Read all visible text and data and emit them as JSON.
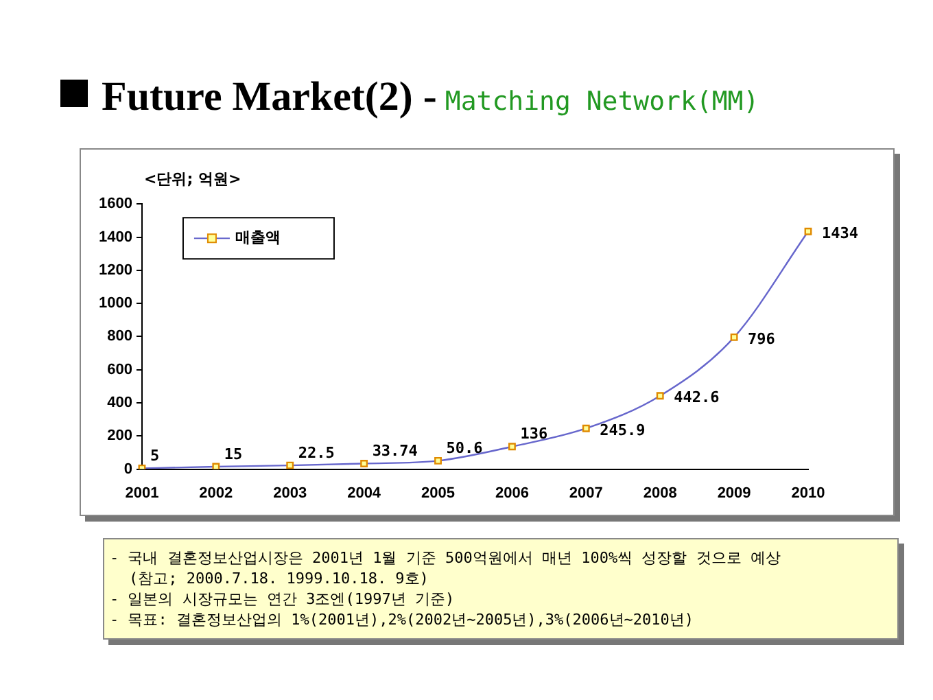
{
  "chart_data": {
    "type": "line",
    "title": "Future Market(2) -",
    "subtitle": "Matching Network(MM)",
    "ylabel": "<단위; 억원>",
    "categories": [
      "2001",
      "2002",
      "2003",
      "2004",
      "2005",
      "2006",
      "2007",
      "2008",
      "2009",
      "2010"
    ],
    "series": [
      {
        "name": "매출액",
        "color": "#6666cc",
        "values": [
          5,
          15,
          22.5,
          33.74,
          50.6,
          136,
          245.9,
          442.6,
          796,
          1434
        ]
      }
    ],
    "ylim": [
      0,
      1600
    ],
    "yticks": [
      0,
      200,
      400,
      600,
      800,
      1000,
      1200,
      1400,
      1600
    ],
    "grid": false,
    "legend": "top left",
    "marker": "square",
    "line_style": "solid",
    "data_labels": true,
    "annotations": [
      "- 국내 결혼정보산업시장은 2001년 1월 기준 500억원에서 매년 100%씩 성장할 것으로 예상",
      "(참고; 2000.7.18. 1999.10.18. 9호)",
      "- 일본의 시장규모는 연간 3조엔(1997년 기준)",
      "- 목표: 결혼정보산업의 1%(2001년),2%(2002년~2005년),3%(2006년~2010년)"
    ]
  }
}
